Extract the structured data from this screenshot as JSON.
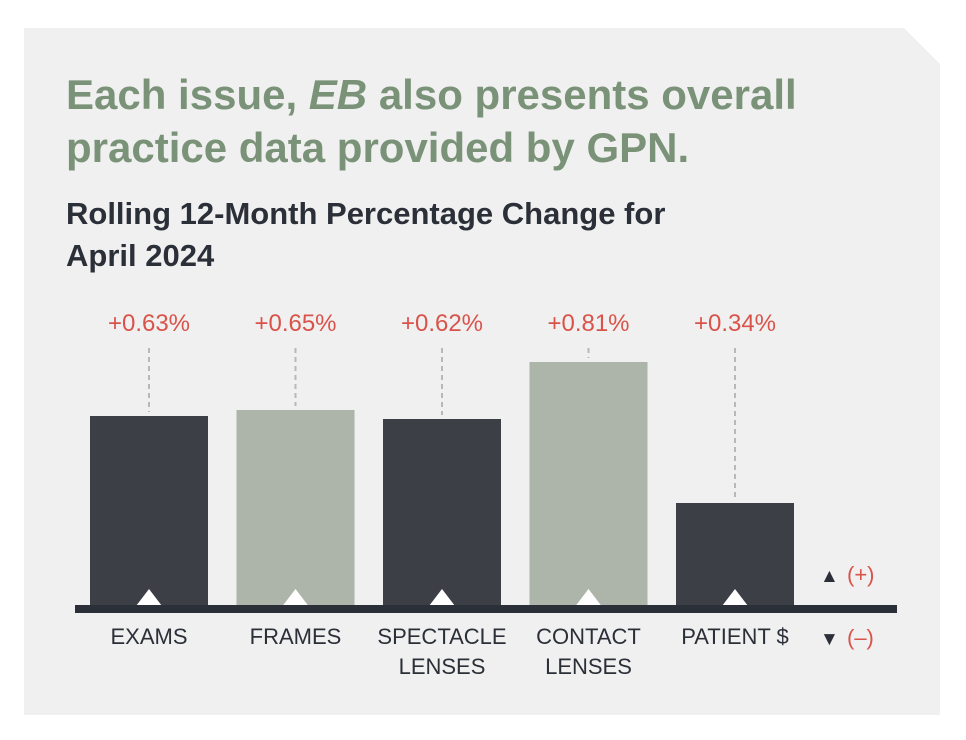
{
  "headline": {
    "part1": "Each issue, ",
    "emphasis": "EB",
    "part2": " also presents overall practice data provided by GPN."
  },
  "chart_data": {
    "type": "bar",
    "title": "Rolling 12-Month Percentage Change for April 2024",
    "categories": [
      [
        "EXAMS"
      ],
      [
        "FRAMES"
      ],
      [
        "SPECTACLE",
        "LENSES"
      ],
      [
        "CONTACT",
        "LENSES"
      ],
      [
        "PATIENT $"
      ]
    ],
    "values": [
      0.63,
      0.65,
      0.62,
      0.81,
      0.34
    ],
    "value_labels": [
      "+0.63%",
      "+0.65%",
      "+0.62%",
      "+0.81%",
      "+0.34%"
    ],
    "direction": [
      "up",
      "up",
      "up",
      "up",
      "up"
    ],
    "bar_colors": [
      "#3d3f47",
      "#adb5aa",
      "#3d3f47",
      "#adb5aa",
      "#3d3f47"
    ],
    "ylim": [
      0,
      0.9
    ],
    "legend": [
      {
        "symbol": "▲",
        "label": "(+)"
      },
      {
        "symbol": "▼",
        "label": "(–)"
      }
    ],
    "legend_position": "right"
  },
  "colors": {
    "background": "#f0f0f0",
    "headline": "#7a9277",
    "title": "#2b2f38",
    "value_label": "#d9534a",
    "axis": "#2b2f38",
    "leader_line": "#b8b8b8"
  }
}
